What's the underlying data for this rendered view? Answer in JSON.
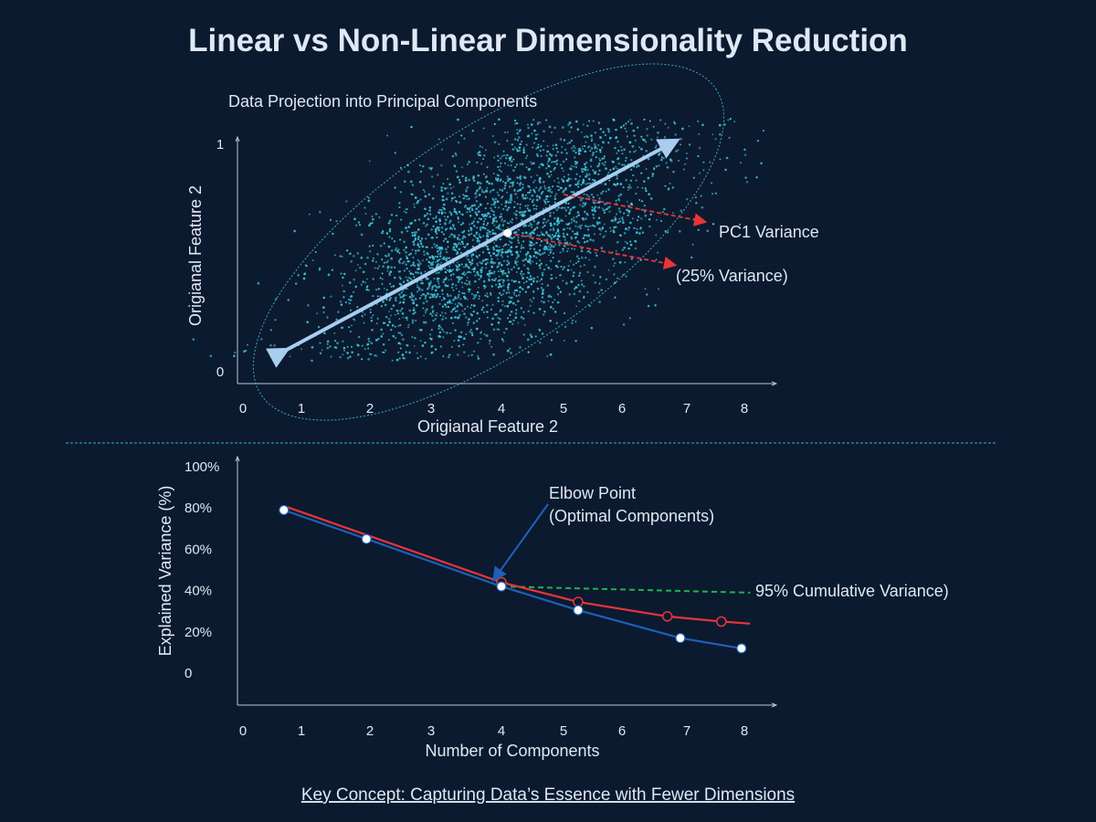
{
  "title": "Linear vs Non-Linear Dimensionality Reduction",
  "footer": "Key Concept: Capturing Data’s Essence with Fewer Dimensions",
  "colors": {
    "background": "#0b1a2f",
    "points": "#3fc6dc",
    "pc_arrow": "#a9cdef",
    "red": "#e8343a",
    "blue": "#1f5fb8",
    "green": "#22b14c",
    "text": "#dfe8f3"
  },
  "chart_data": [
    {
      "type": "scatter",
      "title": "Data Projection into Principal Components",
      "xlabel": "Origianal Feature 2",
      "ylabel": "Origianal Feature 2",
      "x_ticks": [
        "0",
        "1",
        "2",
        "3",
        "4",
        "5",
        "6",
        "7",
        "8"
      ],
      "y_ticks": [
        "0",
        "1"
      ],
      "xlim": [
        0,
        8.5
      ],
      "ylim": [
        0,
        1
      ],
      "grid": false,
      "points_description_distribution": "elongated cloud along PC1",
      "pc1_arrow": {
        "from": [
          0.7,
          0.09
        ],
        "to": [
          6.8,
          1.01
        ]
      },
      "center": [
        4.1,
        0.61
      ],
      "annotations": [
        {
          "text": "PC1 Variance",
          "arrow_from": [
            5.0,
            0.78
          ],
          "arrow_to": [
            7.3,
            0.66
          ]
        },
        {
          "text": "(25% Variance)",
          "arrow_from": [
            4.1,
            0.61
          ],
          "arrow_to": [
            6.8,
            0.47
          ]
        }
      ]
    },
    {
      "type": "line",
      "xlabel": "Number of Components",
      "ylabel": "Explained Variance (%)",
      "x_ticks": [
        "0",
        "1",
        "2",
        "3",
        "4",
        "5",
        "6",
        "7",
        "8"
      ],
      "y_ticks": [
        "0",
        "20%",
        "40%",
        "60%",
        "80%",
        "100%"
      ],
      "ylim": [
        0,
        100
      ],
      "grid": false,
      "series": [
        {
          "color": "#1f5fb8",
          "x": [
            0.7,
            1.95,
            4.0,
            5.25,
            6.9,
            7.95
          ],
          "y": [
            79,
            65,
            42,
            30.5,
            17,
            12
          ],
          "markers": "filled-white"
        },
        {
          "color": "#e8343a",
          "x": [
            0.7,
            4.0,
            5.25,
            6.7,
            7.6,
            8.1
          ],
          "y": [
            81,
            44,
            34.5,
            27.5,
            25,
            24
          ],
          "markers": "hollow"
        },
        {
          "color": "#22b14c",
          "style": "dashed",
          "x": [
            4.0,
            8.1
          ],
          "y": [
            42,
            39
          ]
        }
      ],
      "annotations": [
        {
          "text_line1": "Elbow Point",
          "text_line2": "(Optimal Components)",
          "arrow_to": [
            3.9,
            51
          ]
        },
        {
          "text": "95% Cumulative Variance)"
        }
      ]
    }
  ]
}
